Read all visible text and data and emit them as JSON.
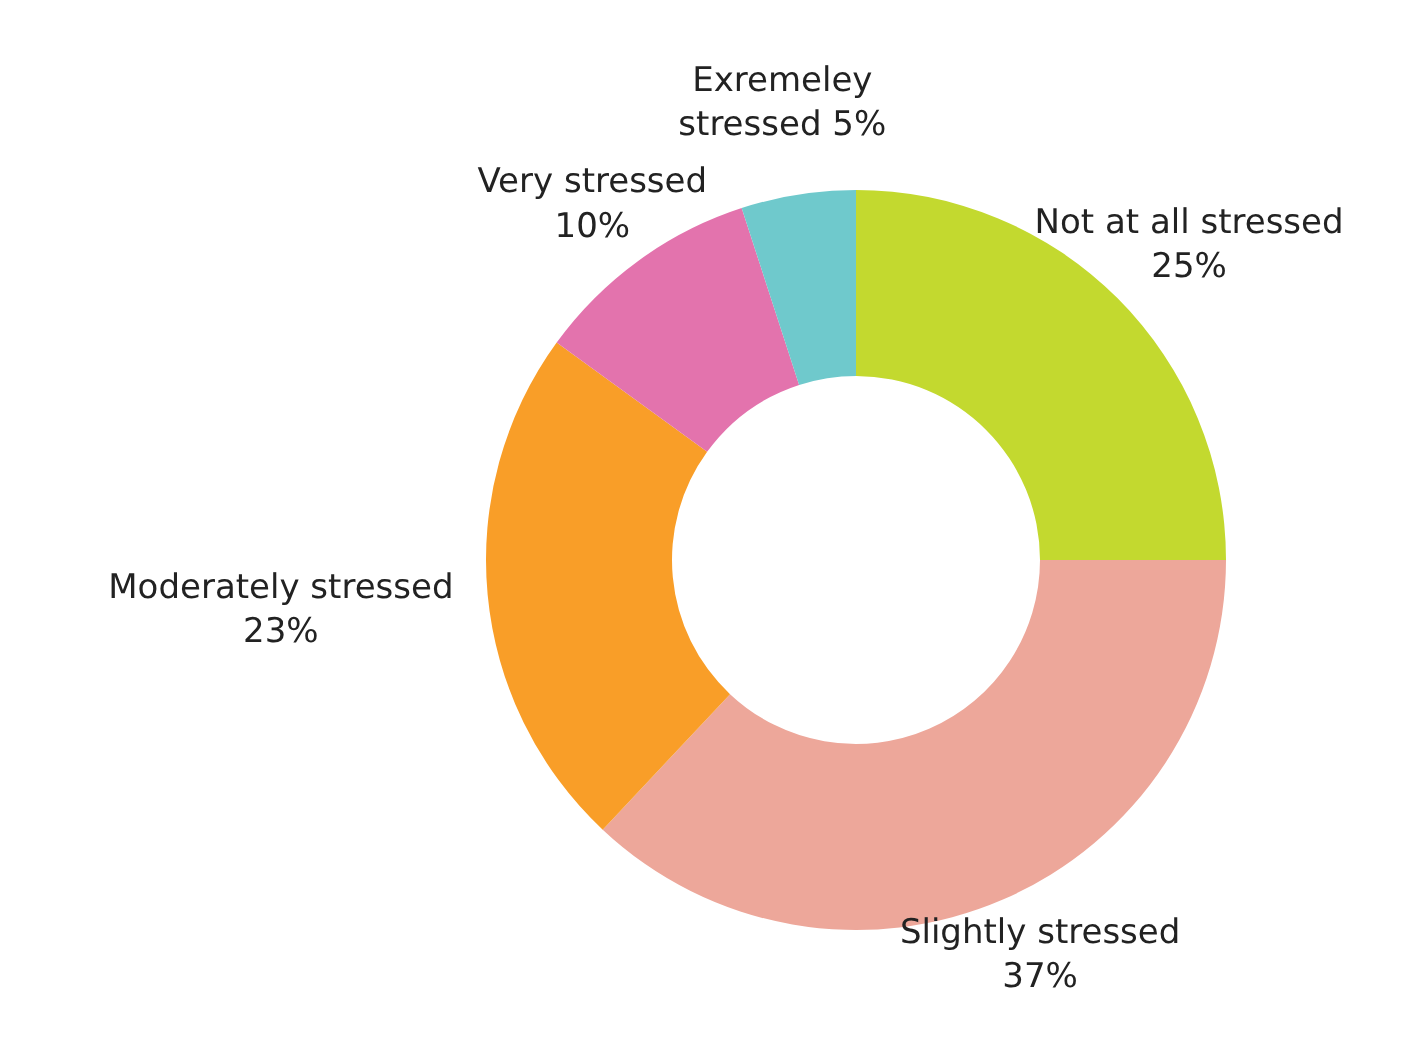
{
  "chart_data": {
    "type": "donut",
    "categories": [
      "Not at all stressed",
      "Slightly stressed",
      "Moderately stressed",
      "Very stressed",
      "Exremeley stressed"
    ],
    "values": [
      25,
      37,
      23,
      10,
      5
    ],
    "value_labels": [
      "25%",
      "37%",
      "23%",
      "10%",
      "5%"
    ],
    "colors": [
      "#c3d92f",
      "#eda79a",
      "#f99e28",
      "#e373ad",
      "#6fc9cc"
    ]
  }
}
